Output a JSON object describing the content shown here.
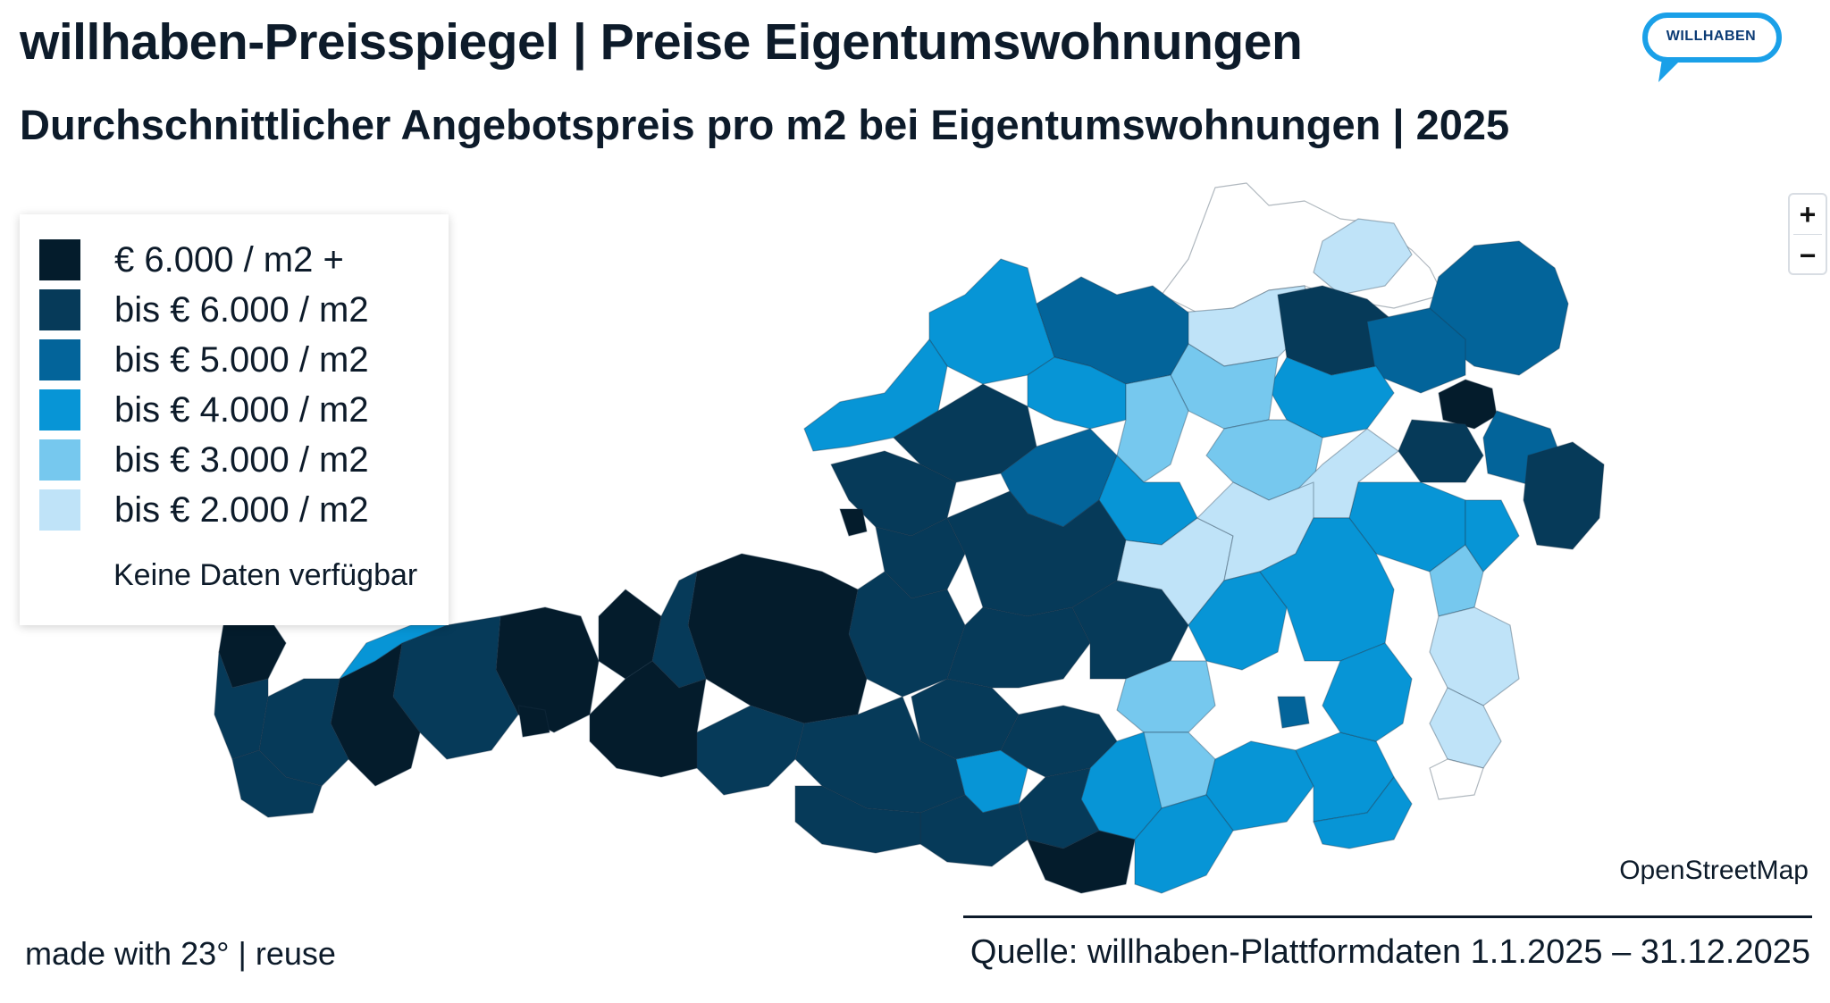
{
  "header": {
    "title": "willhaben-Preisspiegel | Preise Eigentumswohnungen",
    "subtitle": "Durchschnittlicher Angebotspreis pro m2 bei Eigentumswohnungen | 2025",
    "logo_text": "WILLHABEN"
  },
  "legend": {
    "items": [
      {
        "label": "€ 6.000 / m2 +",
        "color": "#041c2c"
      },
      {
        "label": "bis € 6.000 / m2",
        "color": "#063a59"
      },
      {
        "label": "bis € 5.000 / m2",
        "color": "#03649a"
      },
      {
        "label": "bis € 4.000 / m2",
        "color": "#0795d6"
      },
      {
        "label": "bis € 3.000 / m2",
        "color": "#76c8ee"
      },
      {
        "label": "bis € 2.000 / m2",
        "color": "#bfe3f8"
      }
    ],
    "no_data_label": "Keine Daten verfügbar",
    "no_data_color": "#ffffff"
  },
  "map": {
    "attribution": "OpenStreetMap",
    "zoom_in_label": "+",
    "zoom_out_label": "−"
  },
  "footer": {
    "made_with": "made with 23° | reuse",
    "source": "Quelle: willhaben-Plattformdaten 1.1.2025 – 31.12.2025"
  }
}
